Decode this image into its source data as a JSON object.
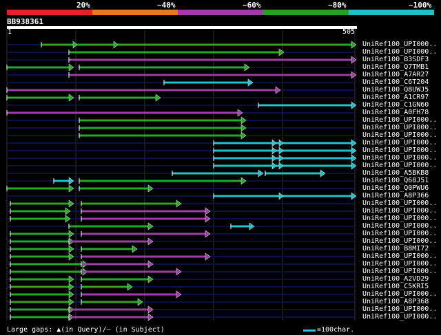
{
  "legend": {
    "segments": [
      {
        "label": "20%",
        "color": "#e8202c"
      },
      {
        "label": "~40%",
        "color": "#e87a20"
      },
      {
        "label": "~60%",
        "color": "#a03ca8"
      },
      {
        "label": "~80%",
        "color": "#28a028"
      },
      {
        "label": "~100%",
        "color": "#20c0c8"
      }
    ]
  },
  "query": {
    "name": "BB938361",
    "start": "1",
    "end": "505"
  },
  "hits": [
    {
      "label": "UniRef100_UPI000..",
      "color": "green",
      "segs": [
        [
          60,
          510
        ]
      ],
      "marks": [
        106,
        165
      ],
      "arrow": true
    },
    {
      "label": "UniRef100_UPI000..",
      "color": "green",
      "segs": [
        [
          100,
          405
        ]
      ],
      "marks": [],
      "arrow": true
    },
    {
      "label": "UniRef100_B3SDF3",
      "color": "purple",
      "segs": [
        [
          100,
          510
        ]
      ],
      "marks": [],
      "arrow": true
    },
    {
      "label": "UniRef100_Q7TMB1",
      "color": "green",
      "segs": [
        [
          10,
          100
        ],
        [
          115,
          355
        ]
      ],
      "marks": [],
      "arrow": true
    },
    {
      "label": "UniRef100_A7AR27",
      "color": "purple",
      "segs": [
        [
          100,
          510
        ]
      ],
      "marks": [],
      "arrow": true
    },
    {
      "label": "UniRef100_C6T204",
      "color": "cyan",
      "segs": [
        [
          238,
          360
        ]
      ],
      "marks": [],
      "arrow": true
    },
    {
      "label": "UniRef100_Q8UWJ5",
      "color": "purple",
      "segs": [
        [
          10,
          400
        ]
      ],
      "marks": [],
      "arrow": true
    },
    {
      "label": "UniRef100_A1CR97",
      "color": "green",
      "segs": [
        [
          10,
          100
        ],
        [
          115,
          226
        ]
      ],
      "marks": [],
      "arrow": true
    },
    {
      "label": "UniRef100_C1GN60",
      "color": "cyan",
      "segs": [
        [
          375,
          510
        ]
      ],
      "marks": [],
      "arrow": true
    },
    {
      "label": "UniRef100_A0FH78",
      "color": "purple",
      "segs": [
        [
          10,
          345
        ]
      ],
      "marks": [],
      "arrow": true
    },
    {
      "label": "UniRef100_UPI000..",
      "color": "green",
      "segs": [
        [
          115,
          350
        ]
      ],
      "marks": [],
      "arrow": true
    },
    {
      "label": "UniRef100_UPI000..",
      "color": "green",
      "segs": [
        [
          115,
          350
        ]
      ],
      "marks": [],
      "arrow": true
    },
    {
      "label": "UniRef100_UPI000..",
      "color": "green",
      "segs": [
        [
          115,
          350
        ]
      ],
      "marks": [],
      "arrow": true
    },
    {
      "label": "UniRef100_UPI000..",
      "color": "cyan",
      "segs": [
        [
          310,
          510
        ]
      ],
      "marks": [
        395,
        405
      ],
      "arrow": true
    },
    {
      "label": "UniRef100_UPI000..",
      "color": "cyan",
      "segs": [
        [
          310,
          510
        ]
      ],
      "marks": [
        395,
        405
      ],
      "arrow": true
    },
    {
      "label": "UniRef100_UPI000..",
      "color": "cyan",
      "segs": [
        [
          310,
          510
        ]
      ],
      "marks": [
        395,
        405
      ],
      "arrow": true
    },
    {
      "label": "UniRef100_UPI000..",
      "color": "cyan",
      "segs": [
        [
          310,
          510
        ]
      ],
      "marks": [
        395,
        405
      ],
      "arrow": true
    },
    {
      "label": "UniRef100_A5BKB8",
      "color": "cyan",
      "segs": [
        [
          250,
          375
        ],
        [
          385,
          465
        ]
      ],
      "marks": [],
      "arrow": true
    },
    {
      "label": "UniRef100_Q68J51",
      "color": "mixed",
      "segs": [
        [
          78,
          100
        ],
        [
          115,
          350
        ]
      ],
      "marks": [],
      "arrow": true
    },
    {
      "label": "UniRef100_Q0PWU6",
      "color": "green",
      "segs": [
        [
          10,
          100
        ],
        [
          115,
          215
        ]
      ],
      "marks": [],
      "arrow": true
    },
    {
      "label": "UniRef100_A8P366",
      "color": "cyan",
      "segs": [
        [
          310,
          510
        ]
      ],
      "marks": [
        405
      ],
      "arrow": true
    },
    {
      "label": "UniRef100_UPI000..",
      "color": "green",
      "segs": [
        [
          15,
          100
        ],
        [
          118,
          256
        ]
      ],
      "marks": [],
      "arrow": true
    },
    {
      "label": "UniRef100_UPI000..",
      "color": "gp",
      "segs": [
        [
          15,
          95
        ],
        [
          118,
          298
        ]
      ],
      "marks": [],
      "arrow": true
    },
    {
      "label": "UniRef100_UPI000..",
      "color": "gp",
      "segs": [
        [
          15,
          95
        ],
        [
          118,
          298
        ]
      ],
      "marks": [],
      "arrow": true
    },
    {
      "label": "UniRef100_UPI000..",
      "color": "mixed2",
      "segs": [
        [
          100,
          215
        ],
        [
          335,
          362
        ]
      ],
      "marks": [],
      "arrow": true
    },
    {
      "label": "UniRef100_UPI000..",
      "color": "gp",
      "segs": [
        [
          15,
          100
        ],
        [
          118,
          298
        ]
      ],
      "marks": [],
      "arrow": true
    },
    {
      "label": "UniRef100_UPI000..",
      "color": "gp",
      "segs": [
        [
          15,
          100
        ],
        [
          100,
          215
        ]
      ],
      "marks": [],
      "arrow": true
    },
    {
      "label": "UniRef100_B8MI72",
      "color": "green",
      "segs": [
        [
          15,
          100
        ],
        [
          118,
          192
        ]
      ],
      "marks": [],
      "arrow": true
    },
    {
      "label": "UniRef100_UPI000..",
      "color": "gp",
      "segs": [
        [
          15,
          100
        ],
        [
          118,
          298
        ]
      ],
      "marks": [],
      "arrow": true
    },
    {
      "label": "UniRef100_UPI000..",
      "color": "gp",
      "segs": [
        [
          15,
          120
        ],
        [
          118,
          215
        ]
      ],
      "marks": [],
      "arrow": true
    },
    {
      "label": "UniRef100_UPI000..",
      "color": "gp",
      "segs": [
        [
          15,
          120
        ],
        [
          118,
          256
        ]
      ],
      "marks": [],
      "arrow": true
    },
    {
      "label": "UniRef100_A2VD29",
      "color": "green",
      "segs": [
        [
          15,
          100
        ],
        [
          118,
          215
        ]
      ],
      "marks": [],
      "arrow": true
    },
    {
      "label": "UniRef100_C5KRI5",
      "color": "green",
      "segs": [
        [
          15,
          100
        ],
        [
          118,
          185
        ]
      ],
      "marks": [],
      "arrow": true
    },
    {
      "label": "UniRef100_UPI000..",
      "color": "gp",
      "segs": [
        [
          15,
          100
        ],
        [
          118,
          256
        ]
      ],
      "marks": [],
      "arrow": true
    },
    {
      "label": "UniRef100_A8P368",
      "color": "green",
      "segs": [
        [
          15,
          100
        ],
        [
          118,
          200
        ]
      ],
      "marks": [],
      "arrow": true
    },
    {
      "label": "UniRef100_UPI000..",
      "color": "gp",
      "segs": [
        [
          15,
          100
        ],
        [
          100,
          215
        ]
      ],
      "marks": [],
      "arrow": true
    },
    {
      "label": "UniRef100_UPI000..",
      "color": "gp",
      "segs": [
        [
          15,
          100
        ],
        [
          100,
          215
        ]
      ],
      "marks": [],
      "arrow": true
    }
  ],
  "footer": {
    "gaps_text": "Large gaps: ▲(in Query)/– (in Subject)",
    "scale_text": "=100char."
  },
  "colors": {
    "green": "#28a828",
    "purple": "#a03ca8",
    "cyan": "#20c0d0",
    "backline": "#101048",
    "grid": "#333"
  }
}
